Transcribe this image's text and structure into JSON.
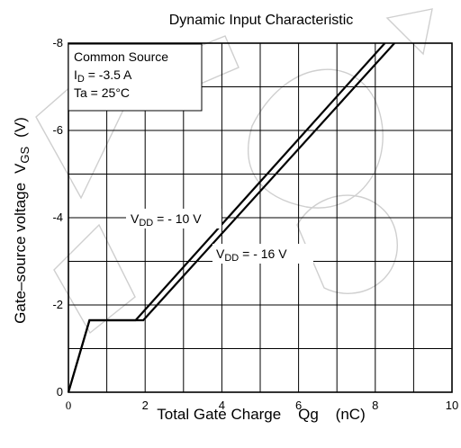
{
  "chart_data": {
    "type": "line",
    "title": "Dynamic Input Characteristic",
    "xlabel": "Total Gate Charge    Qg    (nC)",
    "ylabel_parts": {
      "main": "Gate–source voltage",
      "symbol": "V",
      "sub": "GS",
      "unit": "(V)"
    },
    "xlim": [
      0,
      10
    ],
    "ylim": [
      0,
      -8
    ],
    "x_ticks": [
      {
        "value": 0,
        "label": "0"
      },
      {
        "value": 2,
        "label": "2"
      },
      {
        "value": 4,
        "label": "4"
      },
      {
        "value": 6,
        "label": "6"
      },
      {
        "value": 8,
        "label": "8"
      },
      {
        "value": 10,
        "label": "10"
      }
    ],
    "y_ticks": [
      {
        "value": 0,
        "label": "0"
      },
      {
        "value": -2,
        "label": "-2"
      },
      {
        "value": -4,
        "label": "-4"
      },
      {
        "value": -6,
        "label": "-6"
      },
      {
        "value": -8,
        "label": "-8"
      }
    ],
    "x_grid_step": 1,
    "y_grid_step": -1,
    "grid": true,
    "legend_box": {
      "lines": [
        {
          "main": "Common Source"
        },
        {
          "main": "I",
          "sub": "D",
          "rest": " = -3.5 A"
        },
        {
          "main": "Ta = 25°C"
        }
      ],
      "placement": "top-left"
    },
    "series": [
      {
        "label_main": "V",
        "label_sub": "DD",
        "label_rest": " = - 10 V",
        "points": [
          [
            0,
            0
          ],
          [
            0.55,
            -1.65
          ],
          [
            1.75,
            -1.65
          ],
          [
            8.25,
            -8.0
          ]
        ]
      },
      {
        "label_main": "V",
        "label_sub": "DD",
        "label_rest": " = - 16 V",
        "points": [
          [
            0,
            0
          ],
          [
            0.55,
            -1.65
          ],
          [
            1.95,
            -1.65
          ],
          [
            8.5,
            -8.0
          ]
        ]
      }
    ]
  }
}
